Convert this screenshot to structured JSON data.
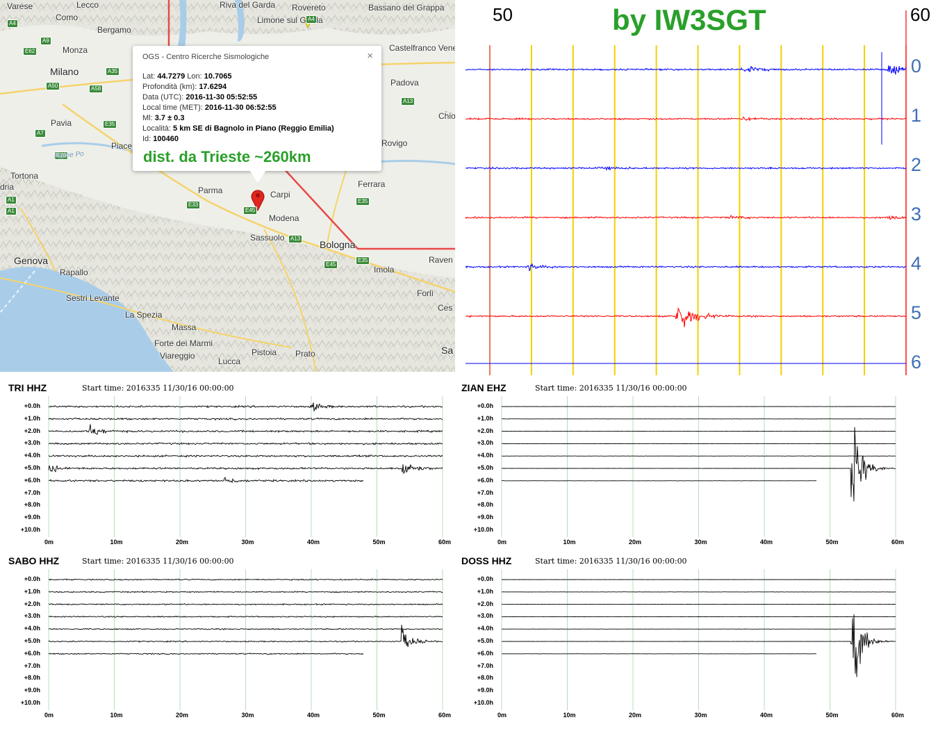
{
  "map": {
    "cities": [
      {
        "name": "Varese",
        "big": false
      },
      {
        "name": "Lecco",
        "big": false
      },
      {
        "name": "Como",
        "big": false
      },
      {
        "name": "Bergamo",
        "big": false
      },
      {
        "name": "Riva del Garda",
        "big": false
      },
      {
        "name": "Rovereto",
        "big": false
      },
      {
        "name": "Bassano del Grappa",
        "big": false
      },
      {
        "name": "Limone sul Garda",
        "big": false
      },
      {
        "name": "Monza",
        "big": false
      },
      {
        "name": "Milano",
        "big": true
      },
      {
        "name": "Castelfranco Veneto",
        "big": false
      },
      {
        "name": "Padova",
        "big": false
      },
      {
        "name": "Pavia",
        "big": false
      },
      {
        "name": "Piace",
        "big": false
      },
      {
        "name": "Chio",
        "big": false
      },
      {
        "name": "Rovigo",
        "big": false
      },
      {
        "name": "Tortona",
        "big": false
      },
      {
        "name": "dria",
        "big": false
      },
      {
        "name": "Parma",
        "big": false
      },
      {
        "name": "Carpi",
        "big": false
      },
      {
        "name": "Ferrara",
        "big": false
      },
      {
        "name": "Modena",
        "big": false
      },
      {
        "name": "Sassuolo",
        "big": false
      },
      {
        "name": "Bologna",
        "big": true
      },
      {
        "name": "Genova",
        "big": true
      },
      {
        "name": "Rapallo",
        "big": false
      },
      {
        "name": "Imola",
        "big": false
      },
      {
        "name": "Raven",
        "big": false
      },
      {
        "name": "Sestri Levante",
        "big": false
      },
      {
        "name": "Forlì",
        "big": false
      },
      {
        "name": "La Spezia",
        "big": false
      },
      {
        "name": "Ces",
        "big": false
      },
      {
        "name": "Massa",
        "big": false
      },
      {
        "name": "Forte dei Marmi",
        "big": false
      },
      {
        "name": "Viareggio",
        "big": false
      },
      {
        "name": "Pistoia",
        "big": false
      },
      {
        "name": "Prato",
        "big": false
      },
      {
        "name": "Lucca",
        "big": false
      },
      {
        "name": "Sa",
        "big": true
      }
    ],
    "roads": [
      "A9",
      "A4",
      "E62",
      "A35",
      "A58",
      "A50",
      "A7",
      "A1",
      "E70",
      "E35",
      "E33",
      "E45",
      "A13",
      "E35",
      "E45",
      "E35",
      "A13",
      "A1",
      "A4"
    ],
    "river": "Fiume Po",
    "popup": {
      "title": "OGS - Centro Ricerche Sismologiche",
      "close": "×",
      "lat_label": "Lat:",
      "lat": "44.7279",
      "lon_label": "Lon:",
      "lon": "10.7065",
      "depth_label": "Profondità (km):",
      "depth": "17.6294",
      "date_label": "Data (UTC):",
      "date": "2016-11-30 05:52:55",
      "local_label": "Local time (MET):",
      "local": "2016-11-30 06:52:55",
      "ml_label": "Ml:",
      "ml": "3.7 ± 0.3",
      "loc_label": "Località:",
      "loc": "5 km SE di Bagnolo in Piano (Reggio Emilia)",
      "id_label": "Id:",
      "id": "100460",
      "distance": "dist. da Trieste ~260km"
    },
    "colors": {
      "popup_distance": "#2aa02a",
      "marker": "#e0261f",
      "border_line": "#e84848"
    }
  },
  "drum": {
    "title": "by IW3SGT",
    "minute_start": "50",
    "minute_end": "60",
    "hours": [
      "0",
      "1",
      "2",
      "3",
      "4",
      "5",
      "6"
    ],
    "trace_colors": [
      "#0000ff",
      "#ff0000"
    ],
    "event_hour": 5,
    "event_minute": 54.8
  },
  "stations": [
    {
      "name": "TRI HHZ",
      "start": "Start time: 2016335 11/30/16 00:00:00",
      "end_minute": 48,
      "events": [
        {
          "row": 0,
          "minute": 40,
          "amp": 10
        },
        {
          "row": 2,
          "minute": 6.5,
          "amp": 14
        },
        {
          "row": 5,
          "minute": 0,
          "amp": 10
        },
        {
          "row": 5,
          "minute": 54,
          "amp": 24
        },
        {
          "row": 6,
          "minute": 27,
          "amp": 8
        }
      ],
      "noise": "high"
    },
    {
      "name": "ZIAN EHZ",
      "start": "Start time: 2016335 11/30/16 00:00:00",
      "end_minute": 48,
      "events": [
        {
          "row": 5,
          "minute": 53.5,
          "amp": 110
        }
      ],
      "noise": "low"
    },
    {
      "name": "SABO HHZ",
      "start": "Start time: 2016335 11/30/16 00:00:00",
      "end_minute": 48,
      "events": [
        {
          "row": 5,
          "minute": 54,
          "amp": 28
        }
      ],
      "noise": "mid"
    },
    {
      "name": "DOSS HHZ",
      "start": "Start time: 2016335 11/30/16 00:00:00",
      "end_minute": 48,
      "events": [
        {
          "row": 5,
          "minute": 53.5,
          "amp": 115
        }
      ],
      "noise": "low"
    }
  ],
  "helicorder_axis": {
    "hour_labels": [
      "+0.0h",
      "+1.0h",
      "+2.0h",
      "+3.0h",
      "+4.0h",
      "+5.0h",
      "+6.0h",
      "+7.0h",
      "+8.0h",
      "+9.0h",
      "+10.0h"
    ],
    "minute_labels": [
      "0m",
      "10m",
      "20m",
      "30m",
      "40m",
      "50m",
      "60m"
    ]
  }
}
